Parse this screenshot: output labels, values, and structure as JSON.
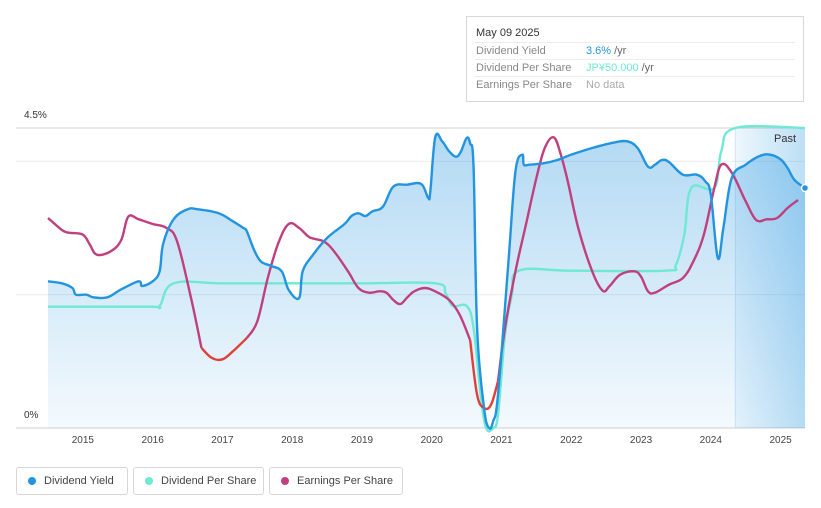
{
  "tooltip": {
    "date": "May 09 2025",
    "rows": [
      {
        "label": "Dividend Yield",
        "value": "3.6%",
        "unit": "/yr",
        "color": "#2394df"
      },
      {
        "label": "Dividend Per Share",
        "value": "JP¥50.000",
        "unit": "/yr",
        "color": "#6fe8d4"
      },
      {
        "label": "Earnings Per Share",
        "value": "No data",
        "unit": "",
        "color": "#aaaaaa"
      }
    ]
  },
  "past_label": "Past",
  "legend": [
    {
      "label": "Dividend Yield",
      "color": "#2394df"
    },
    {
      "label": "Dividend Per Share",
      "color": "#6fe8d4"
    },
    {
      "label": "Earnings Per Share",
      "color": "#c0407e"
    }
  ],
  "chart_data": {
    "type": "line",
    "y_tick_labels": [
      "4.5%",
      "0%"
    ],
    "ylim": [
      0,
      4.5
    ],
    "xlim": [
      2014.5,
      2025.35
    ],
    "x_tick_labels": [
      "2015",
      "2016",
      "2017",
      "2018",
      "2019",
      "2020",
      "2021",
      "2022",
      "2023",
      "2024",
      "2025"
    ],
    "x_ticks": [
      2015,
      2016,
      2017,
      2018,
      2019,
      2020,
      2021,
      2022,
      2023,
      2024,
      2025
    ],
    "past_region_start": 2024.35,
    "grid": true,
    "legend_position": "bottom",
    "series": [
      {
        "name": "Dividend Yield",
        "color": "#2394df",
        "fill": true,
        "points": [
          [
            2014.5,
            2.2
          ],
          [
            2014.7,
            2.17
          ],
          [
            2014.85,
            2.1
          ],
          [
            2014.9,
            2.0
          ],
          [
            2015.05,
            2.0
          ],
          [
            2015.15,
            1.96
          ],
          [
            2015.35,
            1.96
          ],
          [
            2015.55,
            2.08
          ],
          [
            2015.8,
            2.2
          ],
          [
            2015.85,
            2.13
          ],
          [
            2016.0,
            2.2
          ],
          [
            2016.1,
            2.35
          ],
          [
            2016.15,
            2.76
          ],
          [
            2016.3,
            3.13
          ],
          [
            2016.5,
            3.28
          ],
          [
            2016.65,
            3.28
          ],
          [
            2016.95,
            3.22
          ],
          [
            2017.15,
            3.1
          ],
          [
            2017.3,
            3.0
          ],
          [
            2017.35,
            2.95
          ],
          [
            2017.45,
            2.68
          ],
          [
            2017.55,
            2.5
          ],
          [
            2017.7,
            2.43
          ],
          [
            2017.85,
            2.35
          ],
          [
            2017.95,
            2.07
          ],
          [
            2018.1,
            1.95
          ],
          [
            2018.15,
            2.35
          ],
          [
            2018.3,
            2.6
          ],
          [
            2018.5,
            2.85
          ],
          [
            2018.75,
            3.06
          ],
          [
            2018.85,
            3.18
          ],
          [
            2018.95,
            3.22
          ],
          [
            2019.05,
            3.18
          ],
          [
            2019.15,
            3.25
          ],
          [
            2019.3,
            3.32
          ],
          [
            2019.45,
            3.62
          ],
          [
            2019.65,
            3.65
          ],
          [
            2019.85,
            3.66
          ],
          [
            2019.95,
            3.45
          ],
          [
            2019.98,
            3.55
          ],
          [
            2020.05,
            4.36
          ],
          [
            2020.15,
            4.3
          ],
          [
            2020.25,
            4.15
          ],
          [
            2020.35,
            4.07
          ],
          [
            2020.42,
            4.15
          ],
          [
            2020.5,
            4.35
          ],
          [
            2020.55,
            4.27
          ],
          [
            2020.6,
            3.9
          ],
          [
            2020.65,
            1.5
          ],
          [
            2020.75,
            0.3
          ],
          [
            2020.82,
            0.0
          ],
          [
            2020.88,
            0.1
          ],
          [
            2020.95,
            0.5
          ],
          [
            2021.1,
            2.5
          ],
          [
            2021.2,
            3.85
          ],
          [
            2021.3,
            4.1
          ],
          [
            2021.32,
            3.95
          ],
          [
            2021.4,
            3.95
          ],
          [
            2021.6,
            3.97
          ],
          [
            2021.8,
            4.02
          ],
          [
            2022.0,
            4.1
          ],
          [
            2022.3,
            4.2
          ],
          [
            2022.6,
            4.28
          ],
          [
            2022.8,
            4.3
          ],
          [
            2022.95,
            4.2
          ],
          [
            2023.1,
            3.92
          ],
          [
            2023.2,
            3.95
          ],
          [
            2023.3,
            4.02
          ],
          [
            2023.4,
            3.99
          ],
          [
            2023.6,
            3.8
          ],
          [
            2023.8,
            3.8
          ],
          [
            2023.92,
            3.7
          ],
          [
            2024.0,
            3.5
          ],
          [
            2024.1,
            2.55
          ],
          [
            2024.18,
            3.0
          ],
          [
            2024.3,
            3.75
          ],
          [
            2024.5,
            3.95
          ],
          [
            2024.7,
            4.08
          ],
          [
            2024.85,
            4.1
          ],
          [
            2025.0,
            4.03
          ],
          [
            2025.1,
            3.9
          ],
          [
            2025.2,
            3.72
          ],
          [
            2025.35,
            3.6
          ]
        ]
      },
      {
        "name": "Dividend Per Share",
        "color": "#6fe8d4",
        "fill": false,
        "points": [
          [
            2014.5,
            1.82
          ],
          [
            2015.95,
            1.82
          ],
          [
            2016.1,
            1.83
          ],
          [
            2016.3,
            2.17
          ],
          [
            2017.0,
            2.17
          ],
          [
            2018.0,
            2.17
          ],
          [
            2019.0,
            2.17
          ],
          [
            2020.05,
            2.17
          ],
          [
            2020.2,
            2.02
          ],
          [
            2020.3,
            1.83
          ],
          [
            2020.5,
            1.83
          ],
          [
            2020.6,
            1.5
          ],
          [
            2020.7,
            0.5
          ],
          [
            2020.78,
            0.0
          ],
          [
            2020.88,
            0.0
          ],
          [
            2020.95,
            0.2
          ],
          [
            2021.05,
            1.4
          ],
          [
            2021.15,
            2.0
          ],
          [
            2021.25,
            2.36
          ],
          [
            2022.0,
            2.36
          ],
          [
            2023.35,
            2.36
          ],
          [
            2023.5,
            2.45
          ],
          [
            2023.62,
            2.9
          ],
          [
            2023.72,
            3.6
          ],
          [
            2024.05,
            3.6
          ],
          [
            2024.15,
            4.15
          ],
          [
            2024.35,
            4.5
          ],
          [
            2025.35,
            4.5
          ]
        ]
      },
      {
        "name": "Earnings Per Share",
        "color": "#c0407e",
        "negative_color": "#e0403a",
        "fill": false,
        "points": [
          [
            2014.5,
            3.15
          ],
          [
            2014.7,
            2.97
          ],
          [
            2014.8,
            2.93
          ],
          [
            2015.0,
            2.9
          ],
          [
            2015.1,
            2.75
          ],
          [
            2015.2,
            2.6
          ],
          [
            2015.4,
            2.65
          ],
          [
            2015.55,
            2.82
          ],
          [
            2015.65,
            3.17
          ],
          [
            2015.8,
            3.13
          ],
          [
            2016.0,
            3.06
          ],
          [
            2016.2,
            3.0
          ],
          [
            2016.35,
            2.8
          ],
          [
            2016.55,
            1.95
          ],
          [
            2016.7,
            1.2
          ],
          [
            2016.85,
            1.05
          ],
          [
            2017.0,
            1.03
          ],
          [
            2017.15,
            1.15
          ],
          [
            2017.35,
            1.35
          ],
          [
            2017.5,
            1.6
          ],
          [
            2017.65,
            2.25
          ],
          [
            2017.8,
            2.77
          ],
          [
            2017.95,
            3.06
          ],
          [
            2018.1,
            3.0
          ],
          [
            2018.25,
            2.86
          ],
          [
            2018.45,
            2.8
          ],
          [
            2018.6,
            2.65
          ],
          [
            2018.8,
            2.35
          ],
          [
            2018.95,
            2.1
          ],
          [
            2019.1,
            2.03
          ],
          [
            2019.25,
            2.05
          ],
          [
            2019.35,
            2.03
          ],
          [
            2019.45,
            1.92
          ],
          [
            2019.55,
            1.86
          ],
          [
            2019.65,
            1.96
          ],
          [
            2019.75,
            2.05
          ],
          [
            2019.9,
            2.1
          ],
          [
            2020.05,
            2.05
          ],
          [
            2020.25,
            1.92
          ],
          [
            2020.4,
            1.7
          ],
          [
            2020.55,
            1.32
          ],
          [
            2020.65,
            0.5
          ],
          [
            2020.75,
            0.3
          ],
          [
            2020.85,
            0.35
          ],
          [
            2020.95,
            0.7
          ],
          [
            2021.05,
            1.5
          ],
          [
            2021.2,
            2.35
          ],
          [
            2021.35,
            3.05
          ],
          [
            2021.5,
            3.75
          ],
          [
            2021.62,
            4.2
          ],
          [
            2021.75,
            4.36
          ],
          [
            2021.85,
            4.1
          ],
          [
            2021.95,
            3.7
          ],
          [
            2022.1,
            3.0
          ],
          [
            2022.3,
            2.35
          ],
          [
            2022.45,
            2.06
          ],
          [
            2022.55,
            2.13
          ],
          [
            2022.7,
            2.3
          ],
          [
            2022.9,
            2.35
          ],
          [
            2023.0,
            2.27
          ],
          [
            2023.1,
            2.05
          ],
          [
            2023.2,
            2.03
          ],
          [
            2023.4,
            2.15
          ],
          [
            2023.6,
            2.25
          ],
          [
            2023.75,
            2.5
          ],
          [
            2023.9,
            2.9
          ],
          [
            2024.05,
            3.6
          ],
          [
            2024.15,
            3.95
          ],
          [
            2024.3,
            3.83
          ],
          [
            2024.5,
            3.4
          ],
          [
            2024.65,
            3.12
          ],
          [
            2024.8,
            3.13
          ],
          [
            2024.95,
            3.15
          ],
          [
            2025.1,
            3.3
          ],
          [
            2025.25,
            3.42
          ]
        ]
      }
    ]
  }
}
